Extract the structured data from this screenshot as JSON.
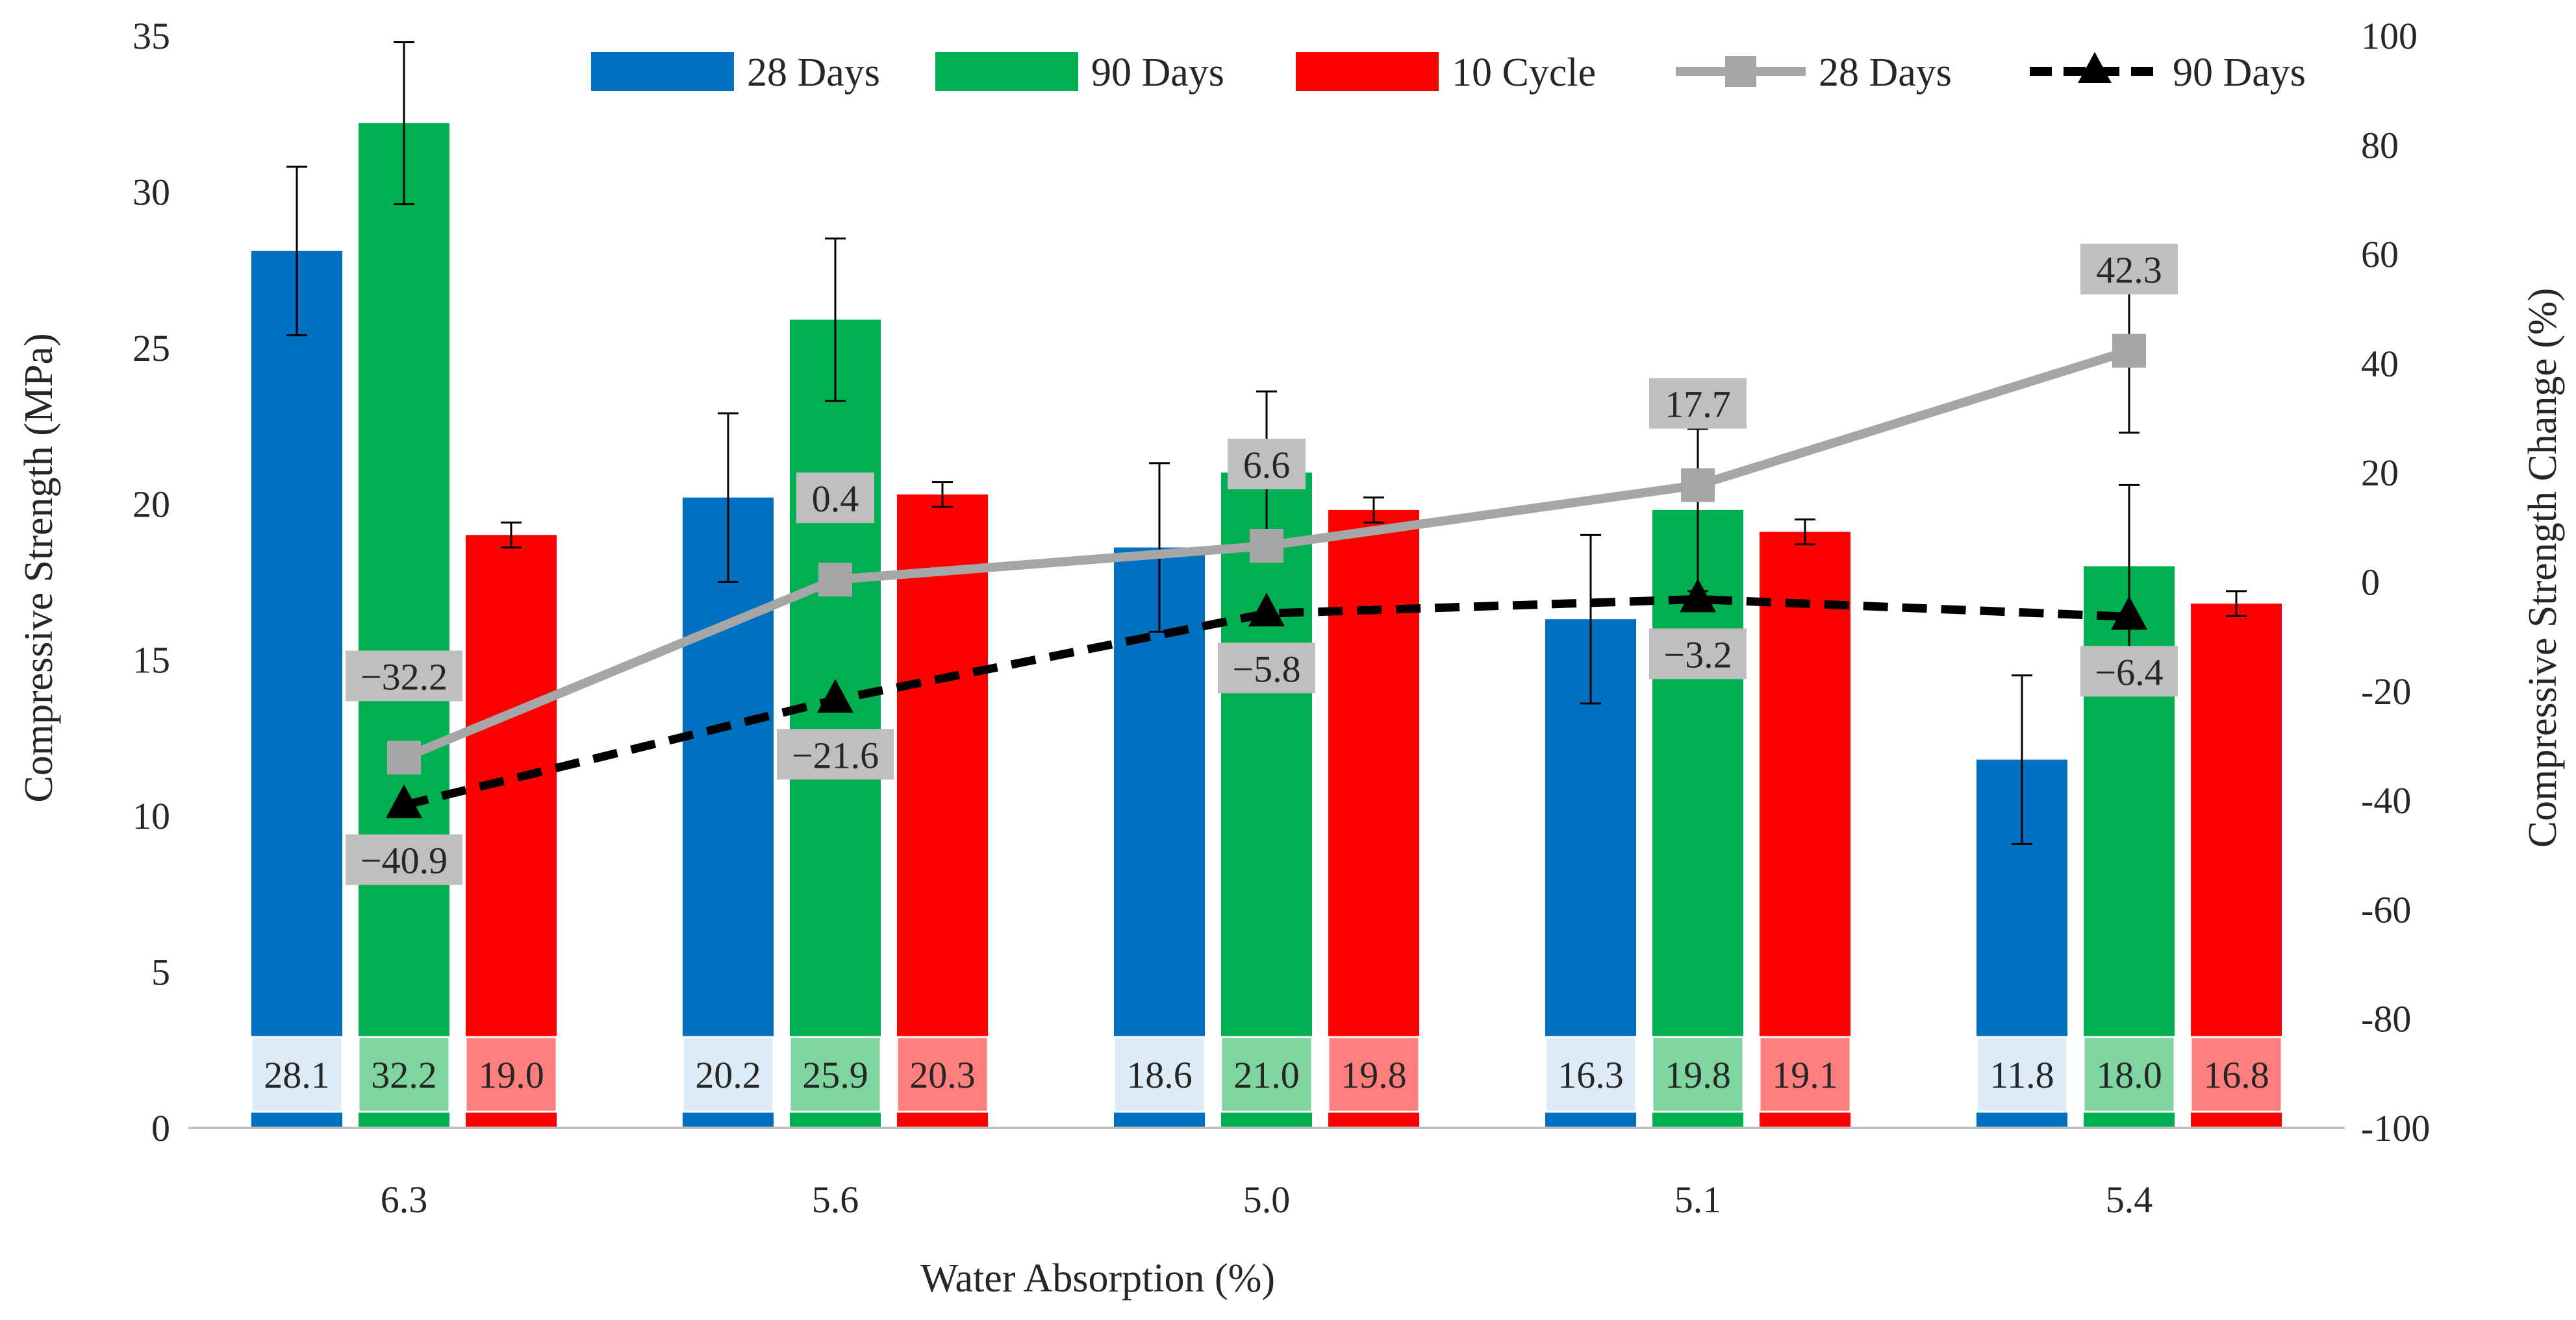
{
  "chart_data": {
    "type": "bar",
    "xlabel": "Water Absorption (%)",
    "ylabel": "Compressive Strength (MPa)",
    "y2label": "Compressive Strength Change (%)",
    "ylim": [
      0,
      35
    ],
    "y2lim": [
      -100,
      100
    ],
    "yticks": [
      "0",
      "5",
      "10",
      "15",
      "20",
      "25",
      "30",
      "35"
    ],
    "y2ticks": [
      "-100",
      "-80",
      "-60",
      "-40",
      "-20",
      "0",
      "20",
      "40",
      "60",
      "80",
      "100"
    ],
    "categories": [
      "6.3",
      "5.6",
      "5.0",
      "5.1",
      "5.4"
    ],
    "series": [
      {
        "name": "28 Days",
        "kind": "bar",
        "color": "#0070C0",
        "values": [
          28.1,
          20.2,
          18.6,
          16.3,
          11.8
        ],
        "labels": [
          "28.1",
          "20.2",
          "18.6",
          "16.3",
          "11.8"
        ],
        "errors": [
          2.7,
          2.7,
          2.7,
          2.7,
          2.7
        ]
      },
      {
        "name": "90 Days",
        "kind": "bar",
        "color": "#00B050",
        "values": [
          32.2,
          25.9,
          21.0,
          19.8,
          18.0
        ],
        "labels": [
          "32.2",
          "25.9",
          "21.0",
          "19.8",
          "18.0"
        ],
        "errors": [
          2.6,
          2.6,
          2.6,
          2.6,
          2.6
        ]
      },
      {
        "name": "10 Cycle",
        "kind": "bar",
        "color": "#FF0000",
        "values": [
          19.0,
          20.3,
          19.8,
          19.1,
          16.8
        ],
        "labels": [
          "19.0",
          "20.3",
          "19.8",
          "19.1",
          "16.8"
        ],
        "errors": [
          0.4,
          0.4,
          0.4,
          0.4,
          0.4
        ]
      }
    ],
    "line_series": [
      {
        "name": "28 Days",
        "kind": "line",
        "axis": "right",
        "color": "#A6A6A6",
        "marker": "square",
        "dash": "solid",
        "values": [
          -32.2,
          0.4,
          6.6,
          17.7,
          42.3
        ],
        "labels": [
          "-32.2",
          "0.4",
          "6.6",
          "17.7",
          "42.3"
        ],
        "errors": [
          0,
          0,
          0,
          0,
          15
        ]
      },
      {
        "name": "90 Days",
        "kind": "line",
        "axis": "right",
        "color": "#000000",
        "marker": "triangle",
        "dash": "dashed",
        "values": [
          -40.9,
          -21.6,
          -5.8,
          -3.2,
          -6.4
        ],
        "labels": [
          "-40.9",
          "-21.6",
          "-5.8",
          "-3.2",
          "-6.4"
        ],
        "errors": [
          0,
          0,
          0,
          0,
          0
        ]
      }
    ],
    "legend": {
      "position": "top",
      "entries": [
        "28 Days",
        "90 Days",
        "10 Cycle",
        "28 Days",
        "90 Days"
      ]
    },
    "grid": false
  }
}
